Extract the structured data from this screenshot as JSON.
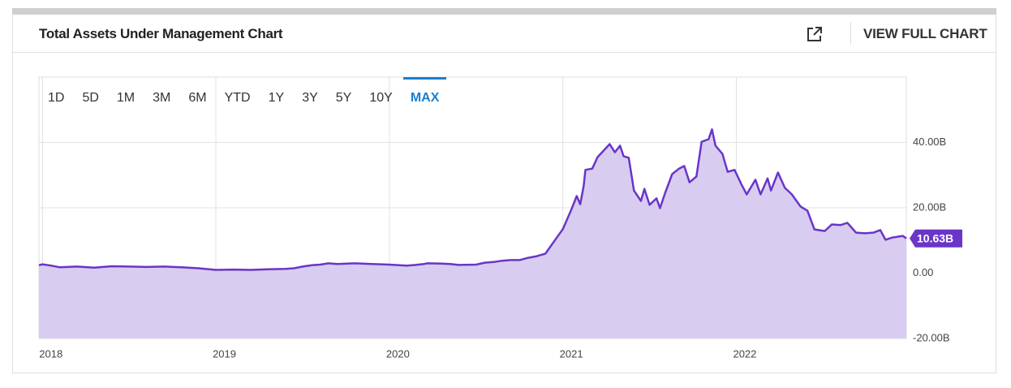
{
  "header": {
    "title": "Total Assets Under Management Chart",
    "link": "VIEW FULL CHART"
  },
  "range_buttons": [
    "1D",
    "5D",
    "1M",
    "3M",
    "6M",
    "YTD",
    "1Y",
    "3Y",
    "5Y",
    "10Y",
    "MAX"
  ],
  "active_range_index": 10,
  "chart_data": {
    "type": "area",
    "xlim": [
      2017.98,
      2022.98
    ],
    "xticks": [
      2018,
      2019,
      2020,
      2021,
      2022
    ],
    "ylim": [
      -20,
      60
    ],
    "yticks": [
      {
        "value": -20,
        "label": "-20.00B"
      },
      {
        "value": 0,
        "label": "0.00"
      },
      {
        "value": 20,
        "label": "20.00B"
      },
      {
        "value": 40,
        "label": "40.00B"
      }
    ],
    "grid": true,
    "series": [
      {
        "color": "#6a35c8",
        "fill": "#d8cdf0",
        "x": [
          2017.98,
          2018.0,
          2018.05,
          2018.1,
          2018.2,
          2018.3,
          2018.4,
          2018.5,
          2018.6,
          2018.7,
          2018.8,
          2018.9,
          2019.0,
          2019.1,
          2019.2,
          2019.3,
          2019.4,
          2019.45,
          2019.5,
          2019.55,
          2019.6,
          2019.65,
          2019.7,
          2019.8,
          2019.9,
          2020.0,
          2020.1,
          2020.15,
          2020.2,
          2020.22,
          2020.3,
          2020.35,
          2020.4,
          2020.5,
          2020.55,
          2020.6,
          2020.65,
          2020.7,
          2020.75,
          2020.8,
          2020.85,
          2020.9,
          2020.94,
          2021.0,
          2021.05,
          2021.08,
          2021.1,
          2021.12,
          2021.13,
          2021.17,
          2021.2,
          2021.24,
          2021.27,
          2021.3,
          2021.33,
          2021.35,
          2021.38,
          2021.41,
          2021.45,
          2021.47,
          2021.5,
          2021.54,
          2021.56,
          2021.59,
          2021.63,
          2021.67,
          2021.7,
          2021.73,
          2021.77,
          2021.8,
          2021.84,
          2021.86,
          2021.88,
          2021.92,
          2021.95,
          2021.99,
          2022.03,
          2022.06,
          2022.11,
          2022.14,
          2022.18,
          2022.2,
          2022.24,
          2022.28,
          2022.32,
          2022.37,
          2022.41,
          2022.45,
          2022.51,
          2022.55,
          2022.6,
          2022.64,
          2022.69,
          2022.74,
          2022.79,
          2022.83,
          2022.86,
          2022.9,
          2022.96,
          2022.98
        ],
        "values": [
          2.4,
          2.7,
          2.3,
          1.8,
          2.0,
          1.7,
          2.1,
          2.0,
          1.9,
          2.0,
          1.8,
          1.5,
          1.0,
          1.1,
          1.0,
          1.2,
          1.3,
          1.5,
          2.0,
          2.4,
          2.6,
          3.0,
          2.8,
          3.0,
          2.8,
          2.6,
          2.3,
          2.5,
          2.8,
          3.0,
          2.9,
          2.8,
          2.5,
          2.6,
          3.2,
          3.4,
          3.8,
          4.0,
          4.0,
          4.7,
          5.2,
          6.0,
          9.0,
          13.5,
          19.6,
          23.6,
          21.1,
          26.6,
          31.6,
          32.0,
          35.5,
          37.8,
          39.5,
          37.0,
          39.0,
          35.8,
          35.3,
          25.3,
          22.1,
          25.8,
          20.9,
          22.9,
          19.9,
          24.6,
          30.3,
          32.0,
          32.8,
          27.8,
          29.6,
          40.2,
          41.0,
          44.0,
          39.0,
          36.5,
          31.0,
          31.6,
          27.1,
          24.1,
          28.6,
          24.1,
          29.0,
          25.3,
          30.8,
          26.1,
          24.1,
          20.4,
          19.1,
          13.4,
          12.9,
          14.9,
          14.7,
          15.4,
          12.4,
          12.2,
          12.4,
          13.2,
          10.2,
          10.9,
          11.4,
          10.63
        ],
        "value_labels": [
          null,
          null,
          null,
          null,
          null,
          null,
          null,
          null,
          null,
          null,
          null,
          null,
          null,
          null,
          null,
          null,
          null,
          null,
          null,
          null,
          null,
          null,
          null,
          null,
          null,
          null,
          null,
          null,
          null,
          null,
          null,
          null,
          null,
          null,
          null,
          null,
          null,
          null,
          null,
          null,
          null,
          null,
          null,
          null,
          null,
          null,
          null,
          null,
          null,
          null,
          null,
          null,
          null,
          null,
          null,
          null,
          null,
          null,
          null,
          null,
          null,
          null,
          null,
          null,
          null,
          null,
          null,
          null,
          null,
          null,
          null,
          null,
          null,
          null,
          null,
          null,
          null,
          null,
          null,
          null,
          null,
          null,
          null,
          null,
          null,
          null,
          null,
          null,
          null,
          null,
          null,
          null,
          null,
          null,
          null,
          null,
          null,
          null,
          null,
          "10.63B"
        ]
      }
    ]
  }
}
